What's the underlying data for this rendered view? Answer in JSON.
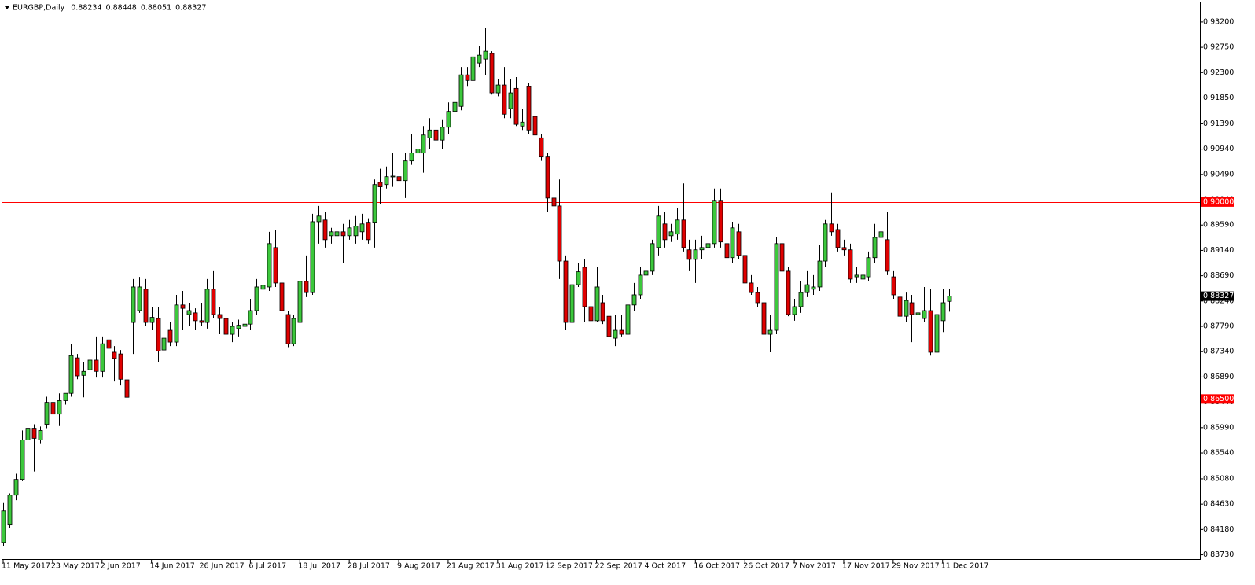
{
  "chart_data": {
    "type": "candlestick",
    "title": "EURGBP,Daily",
    "header_prices": [
      "0.88234",
      "0.88448",
      "0.88051",
      "0.88327"
    ],
    "categories": [
      "11 May 2017",
      null,
      null,
      null,
      null,
      null,
      null,
      null,
      "23 May 2017",
      null,
      null,
      null,
      null,
      null,
      null,
      null,
      "2 Jun 2017",
      null,
      null,
      null,
      null,
      null,
      null,
      null,
      "14 Jun 2017",
      null,
      null,
      null,
      null,
      null,
      null,
      null,
      "26 Jun 2017",
      null,
      null,
      null,
      null,
      null,
      null,
      null,
      "6 Jul 2017",
      null,
      null,
      null,
      null,
      null,
      null,
      null,
      "18 Jul 2017",
      null,
      null,
      null,
      null,
      null,
      null,
      null,
      "28 Jul 2017",
      null,
      null,
      null,
      null,
      null,
      null,
      null,
      "9 Aug 2017",
      null,
      null,
      null,
      null,
      null,
      null,
      null,
      "21 Aug 2017",
      null,
      null,
      null,
      null,
      null,
      null,
      null,
      "31 Aug 2017",
      null,
      null,
      null,
      null,
      null,
      null,
      null,
      "12 Sep 2017",
      null,
      null,
      null,
      null,
      null,
      null,
      null,
      "22 Sep 2017",
      null,
      null,
      null,
      null,
      null,
      null,
      null,
      "4 Oct 2017",
      null,
      null,
      null,
      null,
      null,
      null,
      null,
      "16 Oct 2017",
      null,
      null,
      null,
      null,
      null,
      null,
      null,
      "26 Oct 2017",
      null,
      null,
      null,
      null,
      null,
      null,
      null,
      "7 Nov 2017",
      null,
      null,
      null,
      null,
      null,
      null,
      null,
      "17 Nov 2017",
      null,
      null,
      null,
      null,
      null,
      null,
      null,
      "29 Nov 2017",
      null,
      null,
      null,
      null,
      null,
      null,
      null,
      "11 Dec 2017",
      null
    ],
    "open": [
      0.8395,
      0.8426,
      0.8479,
      0.8507,
      0.8577,
      0.8598,
      0.8577,
      0.8605,
      0.8644,
      0.8623,
      0.8647,
      0.866,
      0.8723,
      0.8692,
      0.8702,
      0.8719,
      0.8699,
      0.8755,
      0.8733,
      0.873,
      0.8684,
      0.8786,
      0.8807,
      0.8845,
      0.8786,
      0.8793,
      0.8737,
      0.8772,
      0.8751,
      0.8817,
      0.88,
      0.8803,
      0.8789,
      0.8786,
      0.8845,
      0.88,
      0.8793,
      0.8765,
      0.8775,
      0.8779,
      0.8783,
      0.8807,
      0.8845,
      0.8849,
      0.8919,
      0.8856,
      0.88,
      0.8748,
      0.8786,
      0.8859,
      0.8839,
      0.8965,
      0.8968,
      0.894,
      0.894,
      0.8947,
      0.894,
      0.894,
      0.8947,
      0.8964,
      0.8964,
      0.9035,
      0.9031,
      0.9045,
      0.9045,
      0.9038,
      0.9073,
      0.9087,
      0.9087,
      0.9114,
      0.9128,
      0.911,
      0.9133,
      0.9161,
      0.917,
      0.9226,
      0.9216,
      0.9247,
      0.9254,
      0.9264,
      0.9194,
      0.9208,
      0.9166,
      0.9202,
      0.9135,
      0.9205,
      0.9152,
      0.9114,
      0.908,
      0.9007,
      0.8993,
      0.8895,
      0.8786,
      0.8853,
      0.8884,
      0.8814,
      0.8789,
      0.8821,
      0.8797,
      0.8758,
      0.8772,
      0.8765,
      0.8817,
      0.8835,
      0.887,
      0.8877,
      0.8919,
      0.8961,
      0.894,
      0.8943,
      0.8968,
      0.8915,
      0.8898,
      0.8915,
      0.8919,
      0.8926,
      0.9003,
      0.8926,
      0.8901,
      0.8947,
      0.8905,
      0.8856,
      0.8839,
      0.8821,
      0.8765,
      0.8772,
      0.8926,
      0.8877,
      0.88,
      0.8814,
      0.8839,
      0.8845,
      0.8849,
      0.8895,
      0.8961,
      0.8951,
      0.8919,
      0.8915,
      0.8867,
      0.8863,
      0.8867,
      0.8901,
      0.8937,
      0.8933,
      0.8867,
      0.8831,
      0.8797,
      0.8821,
      0.88,
      0.8793,
      0.8807,
      0.8733,
      0.8789,
      0.88234
    ],
    "high": [
      0.8465,
      0.8482,
      0.8517,
      0.8594,
      0.8607,
      0.8605,
      0.8601,
      0.8654,
      0.8674,
      0.866,
      0.866,
      0.8748,
      0.873,
      0.8716,
      0.873,
      0.8761,
      0.8761,
      0.8765,
      0.8744,
      0.8737,
      0.8691,
      0.8863,
      0.8867,
      0.8863,
      0.8814,
      0.8814,
      0.8772,
      0.8786,
      0.8835,
      0.8842,
      0.8821,
      0.8811,
      0.8821,
      0.8863,
      0.8877,
      0.8814,
      0.8804,
      0.8786,
      0.8791,
      0.8807,
      0.8828,
      0.8863,
      0.8867,
      0.8947,
      0.895,
      0.8877,
      0.8807,
      0.88,
      0.8877,
      0.8905,
      0.8979,
      0.8993,
      0.8982,
      0.8954,
      0.8961,
      0.8961,
      0.8968,
      0.8975,
      0.8979,
      0.8971,
      0.904,
      0.9059,
      0.9063,
      0.9087,
      0.9059,
      0.9087,
      0.9121,
      0.911,
      0.9135,
      0.9149,
      0.9149,
      0.9147,
      0.9177,
      0.9194,
      0.924,
      0.924,
      0.9275,
      0.9278,
      0.931,
      0.9268,
      0.9219,
      0.924,
      0.9219,
      0.9222,
      0.9166,
      0.9212,
      0.9205,
      0.9121,
      0.9087,
      0.904,
      0.904,
      0.8905,
      0.8863,
      0.8891,
      0.8898,
      0.8828,
      0.8884,
      0.8835,
      0.8807,
      0.88,
      0.88,
      0.8828,
      0.8856,
      0.8884,
      0.8887,
      0.8933,
      0.8993,
      0.8982,
      0.8961,
      0.8989,
      0.9033,
      0.8933,
      0.8933,
      0.894,
      0.8943,
      0.9024,
      0.9024,
      0.8937,
      0.8965,
      0.8961,
      0.8912,
      0.887,
      0.8849,
      0.8828,
      0.88,
      0.8937,
      0.8933,
      0.8884,
      0.8828,
      0.8859,
      0.8877,
      0.887,
      0.8923,
      0.8968,
      0.9017,
      0.8961,
      0.8933,
      0.8926,
      0.8884,
      0.8884,
      0.8912,
      0.8961,
      0.8961,
      0.8982,
      0.8877,
      0.8842,
      0.8839,
      0.8835,
      0.8867,
      0.8849,
      0.8845,
      0.8807,
      0.8845,
      0.88448
    ],
    "low": [
      0.8388,
      0.842,
      0.847,
      0.8504,
      0.8556,
      0.8521,
      0.857,
      0.8598,
      0.8615,
      0.8602,
      0.864,
      0.8654,
      0.8685,
      0.8653,
      0.8681,
      0.8688,
      0.8688,
      0.8692,
      0.8681,
      0.8674,
      0.8647,
      0.873,
      0.8803,
      0.8779,
      0.8772,
      0.8716,
      0.8723,
      0.8744,
      0.8744,
      0.8772,
      0.8779,
      0.8772,
      0.8779,
      0.8775,
      0.8793,
      0.8765,
      0.8758,
      0.8751,
      0.8761,
      0.8755,
      0.8772,
      0.88,
      0.8835,
      0.8842,
      0.8849,
      0.88,
      0.8742,
      0.8744,
      0.8779,
      0.8831,
      0.8835,
      0.8926,
      0.8919,
      0.8926,
      0.8898,
      0.8891,
      0.8933,
      0.8926,
      0.8933,
      0.8926,
      0.8919,
      0.8996,
      0.9024,
      0.9027,
      0.9007,
      0.9007,
      0.9066,
      0.908,
      0.9052,
      0.9094,
      0.9059,
      0.9094,
      0.9121,
      0.9152,
      0.9163,
      0.9205,
      0.9194,
      0.924,
      0.9226,
      0.9191,
      0.9188,
      0.9149,
      0.9149,
      0.9135,
      0.9128,
      0.9121,
      0.911,
      0.9073,
      0.8982,
      0.8989,
      0.8863,
      0.8772,
      0.8775,
      0.8849,
      0.8786,
      0.8783,
      0.8786,
      0.8783,
      0.8751,
      0.8744,
      0.8761,
      0.8758,
      0.8807,
      0.8828,
      0.8859,
      0.887,
      0.8905,
      0.8919,
      0.8929,
      0.8933,
      0.8912,
      0.8877,
      0.8856,
      0.8898,
      0.8912,
      0.8919,
      0.8919,
      0.8887,
      0.8891,
      0.8898,
      0.8849,
      0.8835,
      0.8814,
      0.8761,
      0.8733,
      0.8765,
      0.887,
      0.8797,
      0.8789,
      0.8803,
      0.8831,
      0.8835,
      0.8842,
      0.8884,
      0.894,
      0.8912,
      0.8905,
      0.8856,
      0.8856,
      0.8849,
      0.8859,
      0.8891,
      0.8929,
      0.887,
      0.8828,
      0.8775,
      0.8786,
      0.8751,
      0.8793,
      0.8786,
      0.8727,
      0.8686,
      0.8769,
      0.88051
    ],
    "close": [
      0.8451,
      0.8479,
      0.8507,
      0.8577,
      0.8598,
      0.858,
      0.8594,
      0.8644,
      0.8623,
      0.8647,
      0.866,
      0.8727,
      0.8691,
      0.8699,
      0.8719,
      0.8699,
      0.8748,
      0.874,
      0.8722,
      0.8685,
      0.8653,
      0.8849,
      0.8849,
      0.8786,
      0.8795,
      0.8735,
      0.8758,
      0.8751,
      0.8817,
      0.8811,
      0.8807,
      0.8789,
      0.8786,
      0.8845,
      0.88,
      0.8793,
      0.8765,
      0.8779,
      0.8781,
      0.8783,
      0.8807,
      0.8849,
      0.8852,
      0.8926,
      0.8856,
      0.8807,
      0.8748,
      0.8793,
      0.8859,
      0.8839,
      0.8965,
      0.8975,
      0.8933,
      0.8947,
      0.8947,
      0.894,
      0.8954,
      0.8957,
      0.8961,
      0.8933,
      0.9031,
      0.9027,
      0.9045,
      0.9046,
      0.9038,
      0.9073,
      0.9087,
      0.9094,
      0.9119,
      0.9128,
      0.911,
      0.9133,
      0.9161,
      0.9177,
      0.9226,
      0.9216,
      0.9258,
      0.9261,
      0.9268,
      0.9194,
      0.9208,
      0.9156,
      0.9194,
      0.9138,
      0.9142,
      0.9128,
      0.9119,
      0.908,
      0.9007,
      0.8993,
      0.8895,
      0.8786,
      0.8853,
      0.8876,
      0.8814,
      0.8789,
      0.8849,
      0.8789,
      0.8761,
      0.8772,
      0.8765,
      0.8817,
      0.8835,
      0.887,
      0.8877,
      0.8926,
      0.8975,
      0.8933,
      0.8947,
      0.8968,
      0.8919,
      0.8898,
      0.8915,
      0.8919,
      0.8926,
      0.9003,
      0.8929,
      0.8901,
      0.8954,
      0.8905,
      0.8856,
      0.8839,
      0.8821,
      0.8765,
      0.8772,
      0.8926,
      0.8877,
      0.88,
      0.8814,
      0.8839,
      0.8853,
      0.8849,
      0.8895,
      0.8961,
      0.8947,
      0.8919,
      0.8915,
      0.8863,
      0.887,
      0.887,
      0.8901,
      0.8937,
      0.8947,
      0.8877,
      0.8835,
      0.8797,
      0.8825,
      0.88,
      0.8803,
      0.8807,
      0.8733,
      0.88,
      0.8821,
      0.88327
    ],
    "up_color": "#3cc83c",
    "down_color": "#e00000",
    "ylim": [
      0.8364,
      0.9359
    ],
    "yticks": [
      {
        "value": 0.932,
        "label": "0.93200"
      },
      {
        "value": 0.9275,
        "label": "0.92750"
      },
      {
        "value": 0.923,
        "label": "0.92300"
      },
      {
        "value": 0.9185,
        "label": "0.91850"
      },
      {
        "value": 0.9139,
        "label": "0.91390"
      },
      {
        "value": 0.9094,
        "label": "0.90940"
      },
      {
        "value": 0.9049,
        "label": "0.90490"
      },
      {
        "value": 0.9004,
        "label": "0.90040"
      },
      {
        "value": 0.8959,
        "label": "0.89590"
      },
      {
        "value": 0.8914,
        "label": "0.89140"
      },
      {
        "value": 0.8869,
        "label": "0.88690"
      },
      {
        "value": 0.8824,
        "label": "0.88240"
      },
      {
        "value": 0.8779,
        "label": "0.87790"
      },
      {
        "value": 0.8734,
        "label": "0.87340"
      },
      {
        "value": 0.8689,
        "label": "0.86890"
      },
      {
        "value": 0.8644,
        "label": "0.86440"
      },
      {
        "value": 0.8599,
        "label": "0.85990"
      },
      {
        "value": 0.8554,
        "label": "0.85540"
      },
      {
        "value": 0.8508,
        "label": "0.85080"
      },
      {
        "value": 0.8463,
        "label": "0.84630"
      },
      {
        "value": 0.8418,
        "label": "0.84180"
      },
      {
        "value": 0.8373,
        "label": "0.83730"
      }
    ],
    "hlines": [
      {
        "value": 0.9,
        "label": "0.90000",
        "color": "#ff0000"
      },
      {
        "value": 0.865,
        "label": "0.86500",
        "color": "#ff0000"
      }
    ],
    "last_price": {
      "value": 0.88327,
      "label": "0.88327",
      "color": "#000000"
    },
    "grid": false
  }
}
